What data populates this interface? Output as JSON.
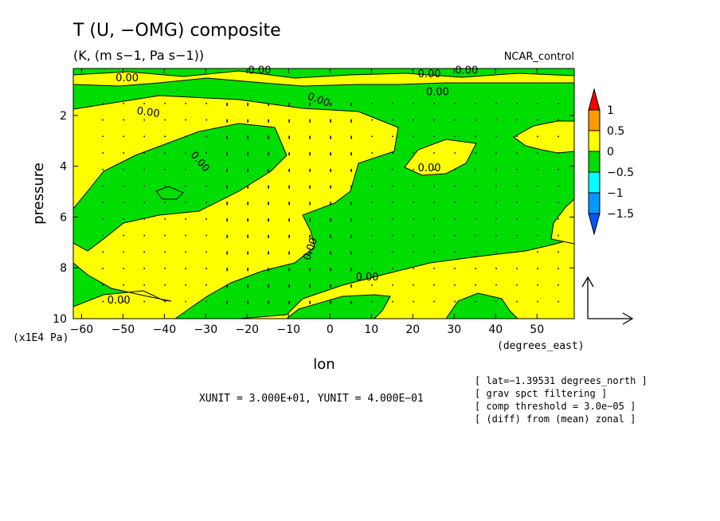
{
  "chart_data": {
    "type": "heatmap",
    "title": "T (U, −OMG) composite",
    "subtitle": "(K, (m s−1, Pa s−1))",
    "dataset": "NCAR_control",
    "xlabel": "lon",
    "xunits": "(degrees_east)",
    "ylabel": "pressure",
    "yunits": "(x1E4 Pa)",
    "xlim": [
      -62,
      59
    ],
    "ylim": [
      10,
      0.15
    ],
    "xticks": [
      "−60",
      "−50",
      "−40",
      "−30",
      "−20",
      "−10",
      "0",
      "10",
      "20",
      "30",
      "40",
      "50"
    ],
    "xtick_values": [
      -60,
      -50,
      -40,
      -30,
      -20,
      -10,
      0,
      10,
      20,
      30,
      40,
      50
    ],
    "yticks": [
      "2",
      "4",
      "6",
      "8",
      "10"
    ],
    "ytick_values": [
      2,
      4,
      6,
      8,
      10
    ],
    "contour_label": "0.00",
    "levels": [
      -1.5,
      -1,
      -0.5,
      0,
      0.5,
      1
    ],
    "colorbar": {
      "labels": [
        "1",
        "0.5",
        "0",
        "−0.5",
        "−1",
        "−1.5"
      ],
      "colors": [
        "#ff0000",
        "#ff9900",
        "#ffff00",
        "#00dd00",
        "#00ffff",
        "#0099ff",
        "#0055ff"
      ]
    },
    "fill_colors": {
      "positive": "#ffff00",
      "negative": "#00dd00"
    },
    "unit_vector_note": "XUNIT = 3.000E+01, YUNIT = 4.000E−01",
    "notes": [
      "[ lat=−1.39531 degrees_north ]",
      "[ grav spct filtering ]",
      "[ comp threshold = 3.0e−05 ]",
      "[ (diff) from (mean) zonal ]"
    ]
  }
}
